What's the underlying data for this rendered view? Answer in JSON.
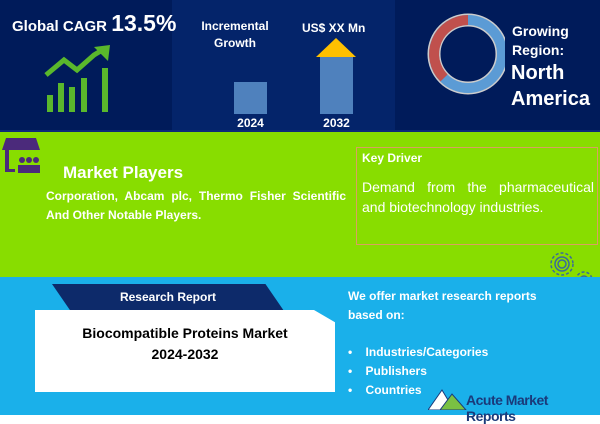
{
  "cagr": {
    "label": "Global CAGR",
    "value": "13.5%"
  },
  "growth": {
    "title_line1": "Incremental",
    "title_line2": "Growth",
    "value_label": "US$ XX Mn",
    "year_start": "2024",
    "year_end": "2032"
  },
  "region": {
    "label_line1": "Growing",
    "label_line2": "Region:",
    "name_line1": "North",
    "name_line2": "America"
  },
  "players": {
    "title": "Market Players",
    "text": "Corporation, Abcam plc, Thermo Fisher Scientific And Other Notable Players."
  },
  "driver": {
    "title": "Key Driver",
    "text": "Demand from the pharmaceutical and biotechnology industries."
  },
  "report": {
    "tab": "Research Report",
    "title_line1": "Biocompatible Proteins Market",
    "title_line2": "2024-2032"
  },
  "offer": {
    "intro": "We offer market research reports based on:",
    "items": [
      "Industries/Categories",
      "Publishers",
      "Countries"
    ]
  },
  "logo": {
    "text": "Acute Market Reports"
  },
  "colors": {
    "navy": "#001b5a",
    "green": "#88dd00",
    "blue": "#1ab0ea",
    "bar": "#4f81bd",
    "arrow": "#ffc000",
    "donut_red": "#c0504d"
  }
}
